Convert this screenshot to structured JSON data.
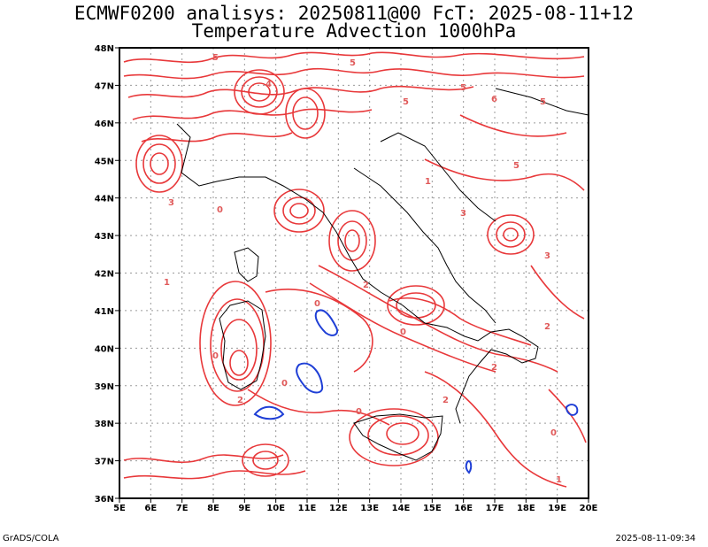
{
  "title_line1": "ECMWF0200 analisys: 20250811@00 FcT: 2025-08-11+12",
  "title_line2": "Temperature Advection 1000hPa",
  "footer_left": "GrADS/COLA",
  "footer_right": "2025-08-11-09:34",
  "lat_labels": [
    "48N",
    "47N",
    "46N",
    "45N",
    "44N",
    "43N",
    "42N",
    "41N",
    "40N",
    "39N",
    "38N",
    "37N",
    "36N"
  ],
  "lon_labels": [
    "5E",
    "6E",
    "7E",
    "8E",
    "9E",
    "10E",
    "11E",
    "12E",
    "13E",
    "14E",
    "15E",
    "16E",
    "17E",
    "18E",
    "19E",
    "20E"
  ],
  "contour_labels": [
    "5",
    "5",
    "5",
    "5",
    "5",
    "6",
    "5",
    "4",
    "3",
    "3",
    "3",
    "0",
    "0",
    "0",
    "0",
    "2",
    "2",
    "2",
    "1",
    "1",
    "0",
    "0",
    "1",
    "2",
    "2",
    "0"
  ],
  "colors": {
    "positive": "#e8383a",
    "negative": "#1f3fd6",
    "grid": "#9a9a9a",
    "coast": "#000000"
  }
}
